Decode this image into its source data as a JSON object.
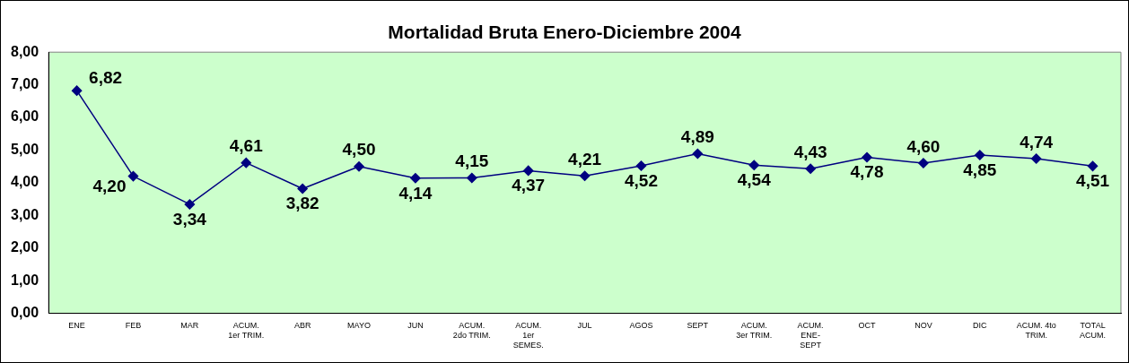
{
  "chart_data": {
    "type": "line",
    "title": "Mortalidad Bruta Enero-Diciembre 2004",
    "categories": [
      "ENE",
      "FEB",
      "MAR",
      "ACUM.\n1er TRIM.",
      "ABR",
      "MAYO",
      "JUN",
      "ACUM.\n2do TRIM.",
      "ACUM.\n1er\nSEMES.",
      "JUL",
      "AGOS",
      "SEPT",
      "ACUM.\n3er TRIM.",
      "ACUM.\nENE-\nSEPT",
      "OCT",
      "NOV",
      "DIC",
      "ACUM. 4to\nTRIM.",
      "TOTAL\nACUM."
    ],
    "series": [
      {
        "color": "#000080",
        "values": [
          6.82,
          4.2,
          3.34,
          4.61,
          3.82,
          4.5,
          4.14,
          4.15,
          4.37,
          4.21,
          4.52,
          4.89,
          4.54,
          4.43,
          4.78,
          4.6,
          4.85,
          4.74,
          4.51
        ]
      }
    ],
    "value_labels": [
      "6,82",
      "4,20",
      "3,34",
      "4,61",
      "3,82",
      "4,50",
      "4,14",
      "4,15",
      "4,37",
      "4,21",
      "4,52",
      "4,89",
      "4,54",
      "4,43",
      "4,78",
      "4,60",
      "4,85",
      "4,74",
      "4,51"
    ],
    "ylim": [
      0,
      8
    ],
    "yticks": [
      {
        "value": 0,
        "label": "0,00"
      },
      {
        "value": 1,
        "label": "1,00"
      },
      {
        "value": 2,
        "label": "2,00"
      },
      {
        "value": 3,
        "label": "3,00"
      },
      {
        "value": 4,
        "label": "4,00"
      },
      {
        "value": 5,
        "label": "5,00"
      },
      {
        "value": 6,
        "label": "6,00"
      },
      {
        "value": 7,
        "label": "7,00"
      },
      {
        "value": 8,
        "label": "8,00"
      }
    ],
    "marker": "diamond",
    "line_style": "solid",
    "grid": false,
    "legend": false
  }
}
